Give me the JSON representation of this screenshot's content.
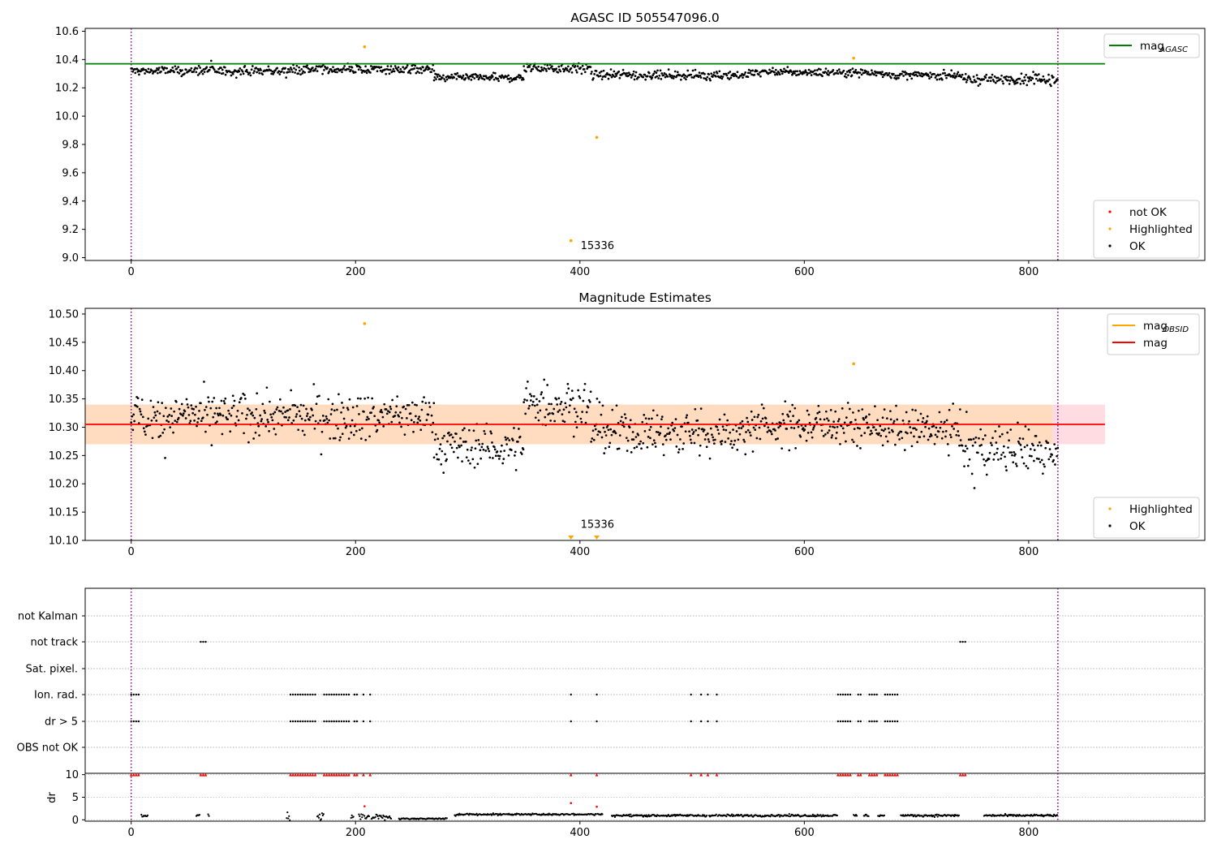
{
  "figure_title": "AGASC ID 505547096.0",
  "chart_data": [
    {
      "type": "scatter",
      "title": "AGASC ID 505547096.0",
      "xlabel": "",
      "ylabel": "",
      "xlim": [
        -41,
        957
      ],
      "ylim": [
        8.98,
        10.62
      ],
      "xticks": [
        0,
        200,
        400,
        600,
        800
      ],
      "yticks": [
        9.0,
        9.2,
        9.4,
        9.6,
        9.8,
        10.0,
        10.2,
        10.4,
        10.6
      ],
      "ytick_labels": [
        "9.0",
        "9.2",
        "9.4",
        "9.6",
        "9.8",
        "10.0",
        "10.2",
        "10.4",
        "10.6"
      ],
      "vlines": [
        0,
        826
      ],
      "hline": {
        "name": "mag_AGASC",
        "y": 10.37,
        "x_range": [
          -41,
          868
        ],
        "color": "#008000"
      },
      "segments": [
        {
          "x": [
            0,
            140
          ],
          "base": 10.32,
          "amp": 0.018
        },
        {
          "x": [
            140,
            270
          ],
          "base": 10.33,
          "amp": 0.018
        },
        {
          "x": [
            270,
            350
          ],
          "base": 10.27,
          "amp": 0.015
        },
        {
          "x": [
            350,
            410
          ],
          "base": 10.34,
          "amp": 0.02
        },
        {
          "x": [
            410,
            550
          ],
          "base": 10.29,
          "amp": 0.018
        },
        {
          "x": [
            550,
            670
          ],
          "base": 10.31,
          "amp": 0.016
        },
        {
          "x": [
            670,
            740
          ],
          "base": 10.29,
          "amp": 0.015
        },
        {
          "x": [
            740,
            826
          ],
          "base": 10.26,
          "amp": 0.02
        }
      ],
      "series": [
        {
          "name": "not OK",
          "color": "#ff0000",
          "points": []
        },
        {
          "name": "Highlighted",
          "color": "#ffa500",
          "points": [
            [
              208,
              10.49
            ],
            [
              392,
              9.12
            ],
            [
              415,
              9.85
            ],
            [
              644,
              10.41
            ]
          ]
        },
        {
          "name": "OK",
          "color": "#000000"
        }
      ],
      "annotations": [
        {
          "text": "15336",
          "x": 397,
          "y": 9.06
        }
      ],
      "legends": {
        "top_right": [
          {
            "label": "mag",
            "sub": "AGASC",
            "color": "#008000",
            "kind": "line"
          }
        ],
        "bottom_right": [
          {
            "label": "not OK",
            "color": "#ff0000",
            "kind": "dot"
          },
          {
            "label": "Highlighted",
            "color": "#ffa500",
            "kind": "dot"
          },
          {
            "label": "OK",
            "color": "#000000",
            "kind": "dot"
          }
        ]
      }
    },
    {
      "type": "scatter",
      "title": "Magnitude Estimates",
      "xlabel": "",
      "ylabel": "",
      "xlim": [
        -41,
        957
      ],
      "ylim": [
        10.1,
        10.51
      ],
      "xticks": [
        0,
        200,
        400,
        600,
        800
      ],
      "yticks": [
        10.1,
        10.15,
        10.2,
        10.25,
        10.3,
        10.35,
        10.4,
        10.45,
        10.5
      ],
      "ytick_labels": [
        "10.10",
        "10.15",
        "10.20",
        "10.25",
        "10.30",
        "10.35",
        "10.40",
        "10.45",
        "10.50"
      ],
      "vlines": [
        0,
        826
      ],
      "band_pink": {
        "y": [
          10.27,
          10.34
        ],
        "x_range": [
          -41,
          868
        ],
        "color": "#ffc0cb"
      },
      "band_orange": {
        "y": [
          10.27,
          10.34
        ],
        "x_range": [
          -41,
          868
        ],
        "color": "#ffdab9"
      },
      "hline_obsid": {
        "name": "mag_OBSID",
        "y": 10.305,
        "color": "#ffa500"
      },
      "hline": {
        "name": "mag",
        "y": 10.305,
        "x_range": [
          -41,
          868
        ],
        "color": "#ff0000"
      },
      "segments": [
        {
          "x": [
            0,
            140
          ],
          "base": 10.32,
          "amp": 0.022
        },
        {
          "x": [
            140,
            270
          ],
          "base": 10.32,
          "amp": 0.022
        },
        {
          "x": [
            270,
            350
          ],
          "base": 10.265,
          "amp": 0.02
        },
        {
          "x": [
            350,
            410
          ],
          "base": 10.34,
          "amp": 0.024
        },
        {
          "x": [
            410,
            550
          ],
          "base": 10.29,
          "amp": 0.022
        },
        {
          "x": [
            550,
            670
          ],
          "base": 10.305,
          "amp": 0.02
        },
        {
          "x": [
            670,
            740
          ],
          "base": 10.295,
          "amp": 0.018
        },
        {
          "x": [
            740,
            826
          ],
          "base": 10.26,
          "amp": 0.025
        }
      ],
      "series": [
        {
          "name": "Highlighted",
          "color": "#ffa500",
          "points": [
            [
              208,
              10.483
            ],
            [
              644,
              10.412
            ]
          ]
        },
        {
          "name": "OK",
          "color": "#000000"
        }
      ],
      "offscale_markers": [
        [
          392,
          10.105
        ],
        [
          415,
          10.105
        ]
      ],
      "annotations": [
        {
          "text": "15336",
          "x": 397,
          "y": 10.115
        }
      ],
      "legends": {
        "top_right": [
          {
            "label": "mag",
            "sub": "OBSID",
            "color": "#ffa500",
            "kind": "line"
          },
          {
            "label": "mag",
            "sub": "",
            "color": "#ff0000",
            "kind": "line"
          }
        ],
        "bottom_right": [
          {
            "label": "Highlighted",
            "color": "#ffa500",
            "kind": "dot"
          },
          {
            "label": "OK",
            "color": "#000000",
            "kind": "dot"
          }
        ]
      }
    },
    {
      "type": "scatter",
      "title": "",
      "xlabel": "",
      "ylabel": "",
      "xlim": [
        -41,
        957
      ],
      "categories": [
        "not Kalman",
        "not track",
        "Sat. pixel.",
        "Ion. rad.",
        "dr > 5",
        "OBS not OK"
      ],
      "vlines": [
        0,
        826
      ],
      "rows": {
        "not track": [
          [
            62,
            68
          ],
          [
            739,
            745
          ]
        ],
        "Ion. rad.": [
          [
            0,
            8
          ],
          [
            142,
            165
          ],
          [
            172,
            195
          ],
          [
            199,
            202
          ],
          [
            207,
            207
          ],
          [
            213,
            213
          ],
          [
            392,
            392
          ],
          [
            415,
            415
          ],
          [
            499,
            499
          ],
          [
            508,
            508
          ],
          [
            514,
            514
          ],
          [
            522,
            522
          ],
          [
            630,
            643
          ],
          [
            648,
            652
          ],
          [
            658,
            665
          ],
          [
            672,
            685
          ]
        ],
        "dr > 5": [
          [
            0,
            8
          ],
          [
            142,
            165
          ],
          [
            172,
            195
          ],
          [
            199,
            202
          ],
          [
            207,
            207
          ],
          [
            213,
            213
          ],
          [
            392,
            392
          ],
          [
            415,
            415
          ],
          [
            499,
            499
          ],
          [
            508,
            508
          ],
          [
            514,
            514
          ],
          [
            522,
            522
          ],
          [
            630,
            643
          ],
          [
            648,
            652
          ],
          [
            658,
            665
          ],
          [
            672,
            685
          ]
        ],
        "not Kalman": [],
        "Sat. pixel.": [],
        "OBS not OK": []
      }
    },
    {
      "type": "scatter",
      "title": "",
      "xlabel": "",
      "ylabel": "dr",
      "xlim": [
        -41,
        957
      ],
      "ylim": [
        -0.3,
        10.3
      ],
      "yticks": [
        0,
        5,
        10
      ],
      "ytick_labels": [
        "0",
        "5",
        "10"
      ],
      "vlines": [
        0,
        826
      ],
      "gaps": [
        [
          15,
          58
        ],
        [
          70,
          138
        ],
        [
          232,
          238
        ],
        [
          282,
          288
        ],
        [
          420,
          428
        ],
        [
          745,
          760
        ]
      ],
      "clipped_x": [
        [
          0,
          8
        ],
        [
          62,
          68
        ],
        [
          142,
          165
        ],
        [
          172,
          195
        ],
        [
          199,
          202
        ],
        [
          207,
          207
        ],
        [
          213,
          213
        ],
        [
          392,
          392
        ],
        [
          415,
          415
        ],
        [
          499,
          499
        ],
        [
          508,
          508
        ],
        [
          514,
          514
        ],
        [
          522,
          522
        ],
        [
          630,
          643
        ],
        [
          648,
          652
        ],
        [
          658,
          665
        ],
        [
          672,
          685
        ],
        [
          739,
          745
        ]
      ],
      "red_points": [
        [
          208,
          3.0
        ],
        [
          392,
          3.7
        ],
        [
          415,
          2.9
        ]
      ],
      "series": [
        {
          "name": "not OK",
          "color": "#ff0000"
        },
        {
          "name": "OK",
          "color": "#000000"
        }
      ]
    }
  ]
}
